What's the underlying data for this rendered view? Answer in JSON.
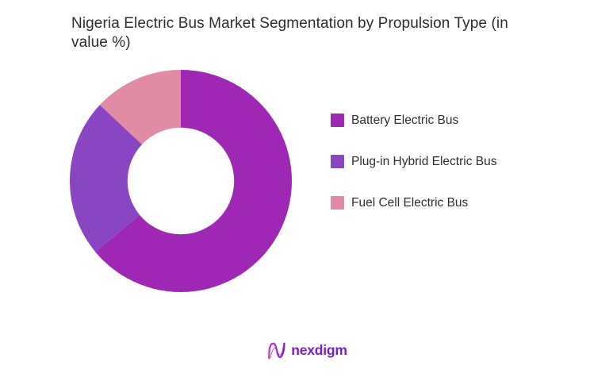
{
  "title": {
    "full": "Nigeria Electric Bus Market Segmentation by Propulsion Type (in value %)",
    "line1": "Nigeria Electric Bus Market Segmentation by Propulsion Type (in",
    "line2": "value %)"
  },
  "chart_data": {
    "type": "pie",
    "subtype": "donut",
    "title": "Nigeria Electric Bus Market Segmentation by Propulsion Type (in value %)",
    "unit": "value %",
    "categories": [
      "Battery Electric Bus",
      "Plug-in Hybrid Electric Bus",
      "Fuel Cell Electric Bus"
    ],
    "values": [
      64,
      23,
      13
    ],
    "colors": [
      "#9E28B4",
      "#8A46C2",
      "#E18BA4"
    ],
    "start_angle_deg": 0,
    "direction": "clockwise",
    "inner_radius_ratio": 0.48,
    "legend_position": "right",
    "data_labels": false
  },
  "legend": {
    "items": [
      {
        "label": "Battery Electric Bus",
        "color": "#9E28B4"
      },
      {
        "label": "Plug-in Hybrid Electric Bus",
        "color": "#8A46C2"
      },
      {
        "label": "Fuel Cell Electric Bus",
        "color": "#E18BA4"
      }
    ]
  },
  "footer": {
    "brand": "nexdigm",
    "brand_color": "#7A1FC0",
    "icon_gradient_start": "#C93BC0",
    "icon_gradient_end": "#7A22CC"
  }
}
